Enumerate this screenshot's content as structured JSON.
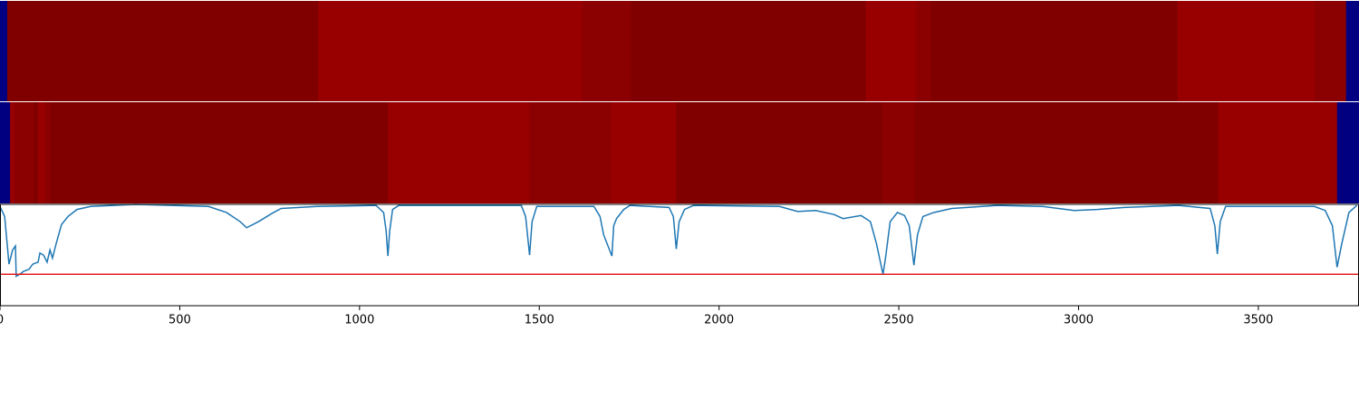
{
  "chart_data": [
    {
      "type": "heatmap",
      "colormap": "jet",
      "clim": [
        0,
        1
      ],
      "xlim": [
        0,
        3780
      ],
      "edges": [
        0,
        20,
        885,
        1619,
        1755,
        2408,
        2547,
        2590,
        3275,
        3656,
        3744,
        3780
      ],
      "values": [
        0,
        1,
        0.976,
        0.989,
        1,
        0.976,
        0.989,
        1,
        0.976,
        0.989,
        0
      ]
    },
    {
      "type": "heatmap",
      "colormap": "jet",
      "clim": [
        0,
        1
      ],
      "xlim": [
        0,
        3780
      ],
      "edges": [
        0,
        28,
        40,
        95,
        105,
        125,
        140,
        1079,
        1473,
        1700,
        1881,
        2453,
        2544,
        3389,
        3719,
        3780
      ],
      "values": [
        0,
        0.976,
        0.989,
        1,
        0.976,
        0.989,
        1,
        0.976,
        0.989,
        0.976,
        1,
        0.989,
        1,
        0.976,
        0
      ]
    },
    {
      "type": "line",
      "color": "#1f77b4",
      "xlim": [
        0,
        3780
      ],
      "ylim": [
        0,
        1
      ],
      "xticks": [
        0,
        500,
        1000,
        1500,
        2000,
        2500,
        3000,
        3500
      ],
      "hline": {
        "value": 0.31,
        "color": "#e41a1c"
      },
      "x": [
        0,
        13,
        25,
        35,
        43,
        45,
        55,
        66,
        81,
        91,
        106,
        111,
        121,
        131,
        139,
        146,
        156,
        171,
        189,
        214,
        252,
        378,
        580,
        630,
        668,
        686,
        719,
        756,
        782,
        882,
        1046,
        1067,
        1074,
        1079,
        1084,
        1092,
        1109,
        1450,
        1462,
        1473,
        1480,
        1493,
        1652,
        1669,
        1679,
        1702,
        1707,
        1715,
        1735,
        1752,
        1861,
        1873,
        1881,
        1889,
        1904,
        1929,
        2168,
        2219,
        2269,
        2320,
        2345,
        2395,
        2421,
        2438,
        2456,
        2463,
        2476,
        2496,
        2516,
        2529,
        2542,
        2552,
        2567,
        2597,
        2647,
        2774,
        2900,
        2988,
        3051,
        3127,
        3278,
        3366,
        3379,
        3386,
        3394,
        3409,
        3656,
        3686,
        3706,
        3719,
        3732,
        3752,
        3774
      ],
      "y": [
        0.98,
        0.88,
        0.41,
        0.55,
        0.59,
        0.29,
        0.31,
        0.34,
        0.36,
        0.41,
        0.43,
        0.52,
        0.5,
        0.43,
        0.55,
        0.47,
        0.61,
        0.8,
        0.88,
        0.95,
        0.98,
        1,
        0.98,
        0.92,
        0.83,
        0.77,
        0.83,
        0.91,
        0.96,
        0.98,
        0.99,
        0.92,
        0.74,
        0.49,
        0.74,
        0.95,
        0.99,
        0.99,
        0.88,
        0.5,
        0.83,
        0.98,
        0.98,
        0.88,
        0.7,
        0.49,
        0.79,
        0.86,
        0.95,
        0.99,
        0.97,
        0.88,
        0.56,
        0.83,
        0.95,
        0.99,
        0.98,
        0.93,
        0.94,
        0.9,
        0.86,
        0.89,
        0.83,
        0.61,
        0.31,
        0.47,
        0.83,
        0.92,
        0.89,
        0.79,
        0.4,
        0.7,
        0.88,
        0.92,
        0.96,
        0.99,
        0.98,
        0.94,
        0.95,
        0.97,
        0.99,
        0.96,
        0.79,
        0.51,
        0.83,
        0.98,
        0.98,
        0.94,
        0.79,
        0.38,
        0.61,
        0.92,
        0.99
      ]
    }
  ]
}
